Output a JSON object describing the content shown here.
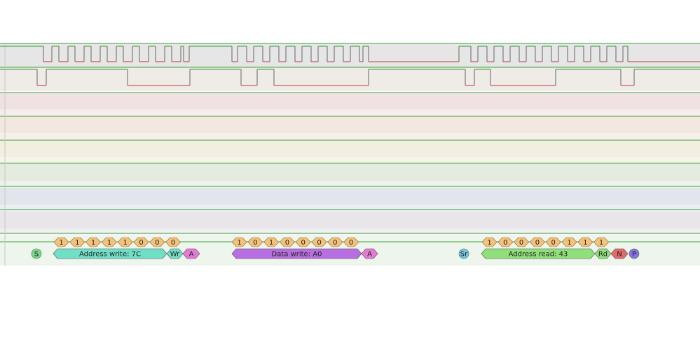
{
  "colors": {
    "clock_lane": "#e6e6e6",
    "data_lane": "#efebe6",
    "empty_lanes": [
      "#f0e2e2",
      "#f2e8e0",
      "#f2eee0",
      "#e4ece0",
      "#e2e6ec",
      "#e9e6e9"
    ],
    "decoder_lane": "#eef5ec",
    "trace_high": "#2f9e2f",
    "trace_low": "#c23a3a",
    "lane_border": "#3aa03a",
    "bit_fill": "#f4c27a",
    "address_write": "#6fe0c6",
    "write_flag": "#6fe0c6",
    "ack": "#e57ad6",
    "data_write": "#b76ee0",
    "start": "#7ad68a",
    "repeated_start": "#7ac6e6",
    "address_read": "#8fe07a",
    "read_flag": "#8fe07a",
    "nack": "#e26a6a",
    "stop": "#8a70e0"
  },
  "decoder": {
    "frames": [
      {
        "id": "start",
        "label": "S",
        "kind": "start"
      },
      {
        "id": "address-write",
        "label": "Address write: 7C",
        "kind": "address_write",
        "bits": [
          "1",
          "1",
          "1",
          "1",
          "1",
          "0",
          "0",
          "0"
        ]
      },
      {
        "id": "write-flag",
        "label": "Wr",
        "kind": "write_flag"
      },
      {
        "id": "ack-1",
        "label": "A",
        "kind": "ack"
      },
      {
        "id": "data-write",
        "label": "Data write: A0",
        "kind": "data_write",
        "bits": [
          "1",
          "0",
          "1",
          "0",
          "0",
          "0",
          "0",
          "0"
        ]
      },
      {
        "id": "ack-2",
        "label": "A",
        "kind": "ack"
      },
      {
        "id": "repeated-start",
        "label": "Sr",
        "kind": "repeated_start"
      },
      {
        "id": "address-read",
        "label": "Address read: 43",
        "kind": "address_read",
        "bits": [
          "1",
          "0",
          "0",
          "0",
          "0",
          "1",
          "1",
          "1"
        ]
      },
      {
        "id": "read-flag",
        "label": "Rd",
        "kind": "read_flag"
      },
      {
        "id": "nack",
        "label": "N",
        "kind": "nack"
      },
      {
        "id": "stop",
        "label": "P",
        "kind": "stop"
      }
    ]
  }
}
